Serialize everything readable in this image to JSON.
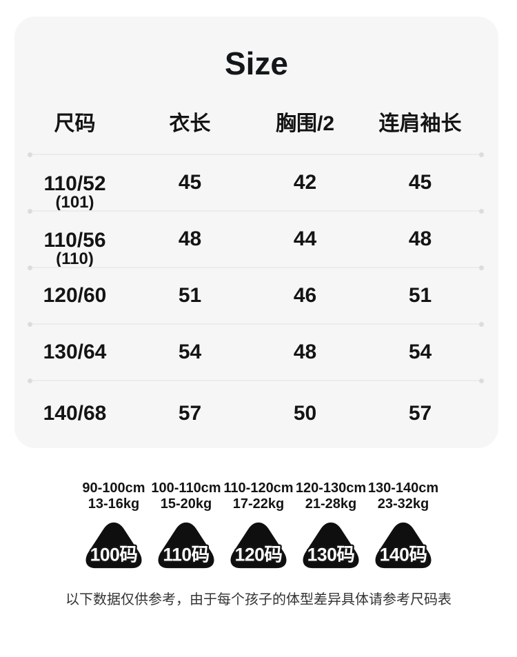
{
  "page": {
    "title": "Size",
    "footer_note": "以下数据仅供参考，由于每个孩子的体型差异具体请参考尺码表"
  },
  "colors": {
    "card_bg": "#f6f6f6",
    "text": "#141414",
    "divider": "#ececec",
    "divider_dot": "#dcdcdc",
    "badge_bg": "#0f0f0f",
    "badge_text": "#ffffff"
  },
  "table": {
    "headers": [
      "尺码",
      "衣长",
      "胸围/2",
      "连肩袖长"
    ],
    "rows": [
      {
        "size": "110/52",
        "note": "(101)",
        "values": [
          "45",
          "42",
          "45"
        ]
      },
      {
        "size": "110/56",
        "note": "(110)",
        "values": [
          "48",
          "44",
          "48"
        ]
      },
      {
        "size": "120/60",
        "note": "",
        "values": [
          "51",
          "46",
          "51"
        ]
      },
      {
        "size": "130/64",
        "note": "",
        "values": [
          "54",
          "48",
          "54"
        ]
      },
      {
        "size": "140/68",
        "note": "",
        "values": [
          "57",
          "50",
          "57"
        ]
      }
    ]
  },
  "badges": {
    "items": [
      {
        "height": "90-100cm",
        "weight": "13-16kg",
        "label": "100码"
      },
      {
        "height": "100-110cm",
        "weight": "15-20kg",
        "label": "110码"
      },
      {
        "height": "110-120cm",
        "weight": "17-22kg",
        "label": "120码"
      },
      {
        "height": "120-130cm",
        "weight": "21-28kg",
        "label": "130码"
      },
      {
        "height": "130-140cm",
        "weight": "23-32kg",
        "label": "140码"
      }
    ]
  },
  "chart_data": {
    "type": "table",
    "title": "Size",
    "columns": [
      "尺码",
      "衣长",
      "胸围/2",
      "连肩袖长"
    ],
    "rows": [
      [
        "110/52 (101)",
        45,
        42,
        45
      ],
      [
        "110/56 (110)",
        48,
        44,
        48
      ],
      [
        "120/60",
        51,
        46,
        51
      ],
      [
        "130/64",
        54,
        48,
        54
      ],
      [
        "140/68",
        57,
        50,
        57
      ]
    ],
    "size_recommendations": [
      {
        "size": "100码",
        "height": "90-100cm",
        "weight": "13-16kg"
      },
      {
        "size": "110码",
        "height": "100-110cm",
        "weight": "15-20kg"
      },
      {
        "size": "120码",
        "height": "110-120cm",
        "weight": "17-22kg"
      },
      {
        "size": "130码",
        "height": "120-130cm",
        "weight": "21-28kg"
      },
      {
        "size": "140码",
        "height": "130-140cm",
        "weight": "23-32kg"
      }
    ],
    "note": "以下数据仅供参考，由于每个孩子的体型差异具体请参考尺码表"
  }
}
